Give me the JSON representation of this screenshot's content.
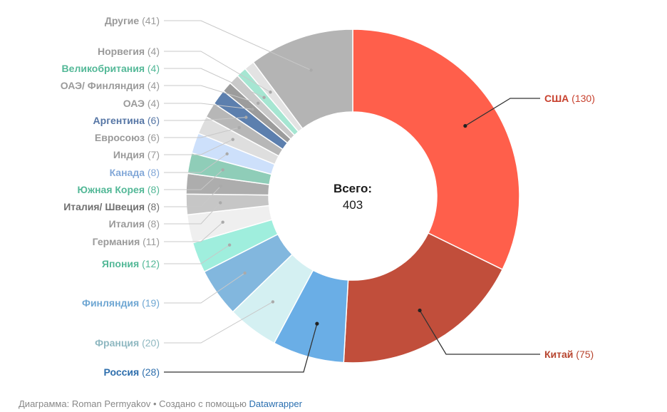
{
  "chart_data": {
    "type": "pie",
    "donut": true,
    "center_label": {
      "title": "Всего:",
      "value": "403"
    },
    "slices": [
      {
        "label": "США",
        "value": 130,
        "color": "#FF5F4B",
        "label_color": "#C8412E"
      },
      {
        "label": "Китай",
        "value": 75,
        "color": "#C14E3B",
        "label_color": "#B7452F"
      },
      {
        "label": "Россия",
        "value": 28,
        "color": "#6AAEE6",
        "label_color": "#2F6FAD"
      },
      {
        "label": "Франция",
        "value": 20,
        "color": "#D4F0F2",
        "label_color": "#8FB8C1"
      },
      {
        "label": "Финляндия",
        "value": 19,
        "color": "#82B7DE",
        "label_color": "#6FA7D3"
      },
      {
        "label": "Япония",
        "value": 12,
        "color": "#9FEEDD",
        "label_color": "#53B897"
      },
      {
        "label": "Германия",
        "value": 11,
        "color": "#EFEFEF",
        "label_color": "#9A9A9A"
      },
      {
        "label": "Италия",
        "value": 8,
        "color": "#C6C6C6",
        "label_color": "#9A9A9A"
      },
      {
        "label": "Италия/ Швеция",
        "value": 8,
        "color": "#ADADAD",
        "label_color": "#707070"
      },
      {
        "label": "Южная Корея",
        "value": 8,
        "color": "#8FCDB8",
        "label_color": "#53B897"
      },
      {
        "label": "Канада",
        "value": 8,
        "color": "#CDE0FB",
        "label_color": "#83A8D8"
      },
      {
        "label": "Индия",
        "value": 7,
        "color": "#DEDEDE",
        "label_color": "#9A9A9A"
      },
      {
        "label": "Евросоюз",
        "value": 6,
        "color": "#B7B7B7",
        "label_color": "#9A9A9A"
      },
      {
        "label": "Аргентина",
        "value": 6,
        "color": "#5C7FAE",
        "label_color": "#5676A5"
      },
      {
        "label": "ОАЭ",
        "value": 4,
        "color": "#9C9C9C",
        "label_color": "#9A9A9A"
      },
      {
        "label": "ОАЭ/ Финляндия",
        "value": 4,
        "color": "#C9C9C9",
        "label_color": "#9A9A9A"
      },
      {
        "label": "Великобритания",
        "value": 4,
        "color": "#A6E6D2",
        "label_color": "#53B897"
      },
      {
        "label": "Норвегия",
        "value": 4,
        "color": "#E3E3E3",
        "label_color": "#9A9A9A"
      },
      {
        "label": "Другие",
        "value": 41,
        "color": "#B4B4B4",
        "label_color": "#9A9A9A"
      }
    ]
  },
  "footer": {
    "credit": "Диаграмма: Roman Permyakov • Создано с помощью ",
    "link": "Datawrapper"
  }
}
